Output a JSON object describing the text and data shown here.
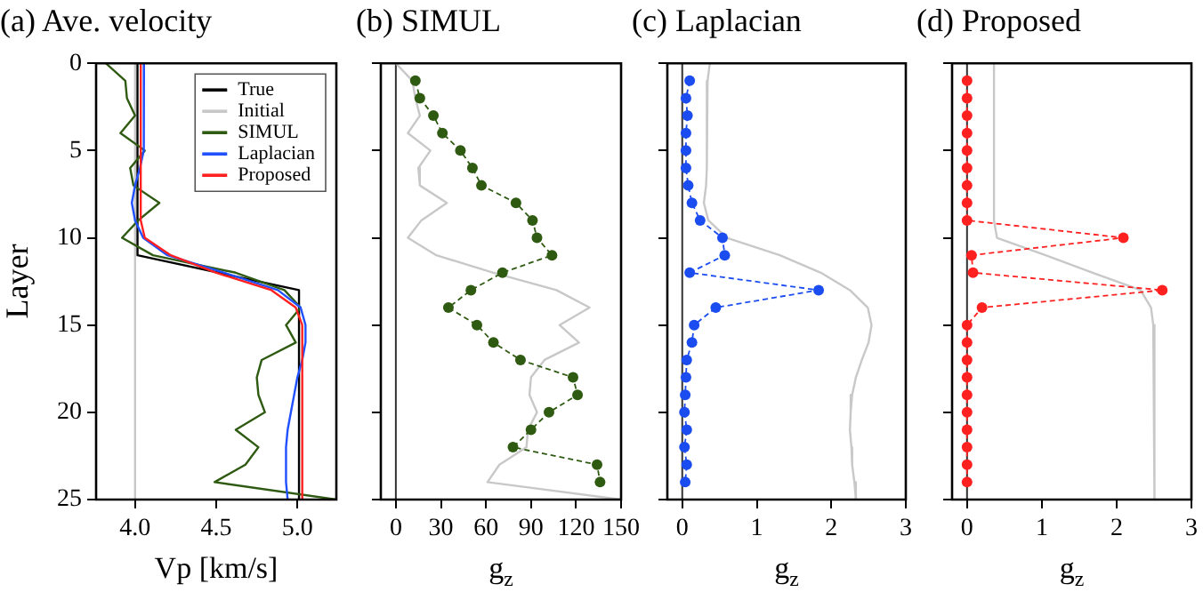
{
  "chart_data": [
    {
      "type": "line",
      "title": "(a) Ave. velocity",
      "xlabel": "Vp [km/s]",
      "ylabel": "Layer",
      "xlim": [
        3.76,
        5.24
      ],
      "xticks": [
        {
          "value": 4,
          "label": "4.0"
        },
        {
          "value": 4.5,
          "label": "4.5"
        },
        {
          "value": 5,
          "label": "5.0"
        }
      ],
      "ylim": [
        25,
        0
      ],
      "yticks": [
        0,
        5,
        10,
        15,
        20,
        25
      ],
      "grid": false,
      "legend": "top right",
      "series": [
        {
          "name": "True",
          "color": "#000000",
          "marker": "none",
          "x": [
            4.015,
            4.015,
            5.01,
            5.01
          ],
          "values": [
            0,
            11,
            13,
            25
          ]
        },
        {
          "name": "Initial",
          "color": "#c8c8c8",
          "marker": "none",
          "x": [
            4.0,
            4.0
          ],
          "values": [
            0,
            25
          ]
        },
        {
          "name": "SIMUL",
          "color": "#2f5a12",
          "marker": "none",
          "x": [
            3.82,
            3.94,
            3.95,
            4.0,
            3.91,
            4.06,
            3.97,
            3.99,
            4.15,
            4.02,
            3.92,
            4.11,
            4.62,
            4.92,
            5.02,
            4.93,
            4.99,
            4.78,
            4.75,
            4.76,
            4.8,
            4.62,
            4.76,
            4.68,
            4.49,
            5.24
          ],
          "values": [
            0,
            1,
            2,
            3,
            4,
            5,
            6,
            7,
            8,
            9,
            10,
            11,
            12,
            13,
            14,
            15,
            16,
            17,
            18,
            19,
            20,
            21,
            22,
            23,
            24,
            25
          ]
        },
        {
          "name": "Laplacian",
          "color": "#2050ff",
          "marker": "none",
          "x": [
            4.055,
            4.055,
            4.055,
            4.055,
            4.055,
            4.05,
            4.03,
            4.0,
            3.98,
            4.0,
            4.05,
            4.2,
            4.55,
            4.88,
            5.02,
            5.05,
            5.05,
            5.03,
            5.0,
            4.98,
            4.96,
            4.94,
            4.93,
            4.93,
            4.93,
            4.94
          ],
          "values": [
            0,
            1,
            2,
            3,
            4,
            5,
            6,
            7,
            8,
            9,
            10,
            11,
            12,
            13,
            14,
            15,
            16,
            17,
            18,
            19,
            20,
            21,
            22,
            23,
            24,
            25
          ]
        },
        {
          "name": "Proposed",
          "color": "#ff2020",
          "marker": "none",
          "x": [
            4.035,
            4.035,
            4.035,
            4.035,
            4.035,
            4.035,
            4.035,
            4.035,
            4.035,
            4.035,
            4.06,
            4.22,
            4.5,
            4.84,
            4.99,
            5.03,
            5.03,
            5.03,
            5.03,
            5.03,
            5.03,
            5.03,
            5.03,
            5.03,
            5.03,
            5.03
          ],
          "values": [
            0,
            1,
            2,
            3,
            4,
            5,
            6,
            7,
            8,
            9,
            10,
            11,
            12,
            13,
            14,
            15,
            16,
            17,
            18,
            19,
            20,
            21,
            22,
            23,
            24,
            25
          ]
        }
      ]
    },
    {
      "type": "line",
      "title": "(b) SIMUL",
      "xlabel": "g$_{z}$",
      "xlim": [
        -10,
        150
      ],
      "xticks": [
        0,
        30,
        60,
        90,
        120,
        150
      ],
      "ylim": [
        25,
        0
      ],
      "yticks": [
        0,
        5,
        10,
        15,
        20,
        25
      ],
      "tick_labels": "x",
      "grid": false,
      "legend": false,
      "ref_lines": [
        {
          "axis": "x",
          "value": 0,
          "color": "#333333"
        }
      ],
      "series": [
        {
          "color": "#c8c8c8",
          "marker": "none",
          "x": [
            0,
            11,
            13,
            16,
            8,
            23,
            15,
            16,
            34,
            17,
            8,
            27,
            65,
            107,
            129,
            109,
            122,
            99,
            90,
            89,
            94,
            88,
            87,
            69,
            61,
            150
          ],
          "values": [
            0,
            1,
            2,
            3,
            4,
            5,
            6,
            7,
            8,
            9,
            10,
            11,
            12,
            13,
            14,
            15,
            16,
            17,
            18,
            19,
            20,
            21,
            22,
            23,
            24,
            25
          ]
        },
        {
          "color": "#2f5a12",
          "marker": "circle",
          "line_style": "dashed",
          "x": [
            13,
            16,
            25,
            31,
            43,
            51,
            57,
            80,
            91,
            94,
            104,
            71,
            50,
            35,
            54,
            65,
            83,
            118,
            121,
            102,
            90,
            78,
            134,
            136
          ],
          "values": [
            1,
            2,
            3,
            4,
            5,
            6,
            7,
            8,
            9,
            10,
            11,
            12,
            13,
            14,
            15,
            16,
            17,
            18,
            19,
            20,
            21,
            22,
            23,
            24
          ]
        }
      ]
    },
    {
      "type": "line",
      "title": "(c) Laplacian",
      "xlabel": "g$_{z}$",
      "xlim": [
        -0.2,
        3
      ],
      "xticks": [
        0,
        1,
        2,
        3
      ],
      "ylim": [
        25,
        0
      ],
      "yticks": [
        0,
        5,
        10,
        15,
        20,
        25
      ],
      "tick_labels": "x",
      "grid": false,
      "legend": false,
      "ref_lines": [
        {
          "axis": "x",
          "value": 0,
          "color": "#333333"
        }
      ],
      "series": [
        {
          "color": "#c8c8c8",
          "marker": "none",
          "x": [
            0.37,
            0.34,
            0.33,
            0.33,
            0.33,
            0.33,
            0.33,
            0.32,
            0.29,
            0.35,
            0.6,
            1.31,
            1.86,
            2.25,
            2.49,
            2.54,
            2.5,
            2.41,
            2.33,
            2.28,
            2.26,
            2.25,
            2.27,
            2.28,
            2.31,
            2.33
          ],
          "values": [
            0,
            1,
            2,
            3,
            4,
            5,
            6,
            7,
            8,
            9,
            10,
            11,
            12,
            13,
            14,
            15,
            16,
            17,
            18,
            19,
            20,
            21,
            22,
            23,
            24,
            25
          ]
        },
        {
          "color": "#1a4cf0",
          "marker": "circle",
          "line_style": "dashed",
          "x": [
            0.1,
            0.05,
            0.07,
            0.05,
            0.05,
            0.05,
            0.08,
            0.13,
            0.24,
            0.54,
            0.57,
            0.1,
            1.83,
            0.45,
            0.16,
            0.13,
            0.06,
            0.05,
            0.04,
            0.03,
            0.06,
            0.03,
            0.06,
            0.04
          ],
          "values": [
            1,
            2,
            3,
            4,
            5,
            6,
            7,
            8,
            9,
            10,
            11,
            12,
            13,
            14,
            15,
            16,
            17,
            18,
            19,
            20,
            21,
            22,
            23,
            24
          ]
        }
      ]
    },
    {
      "type": "line",
      "title": "(d) Proposed",
      "xlabel": "g$_{z}$",
      "xlim": [
        -0.2,
        3
      ],
      "xticks": [
        0,
        1,
        2,
        3
      ],
      "ylim": [
        25,
        0
      ],
      "yticks": [
        0,
        5,
        10,
        15,
        20,
        25
      ],
      "tick_labels": "x",
      "grid": false,
      "legend": false,
      "ref_lines": [
        {
          "axis": "x",
          "value": 0,
          "color": "#333333"
        }
      ],
      "series": [
        {
          "color": "#c8c8c8",
          "marker": "none",
          "x": [
            0.36,
            0.36,
            0.36,
            0.36,
            0.36,
            0.36,
            0.36,
            0.36,
            0.36,
            0.36,
            0.4,
            1.05,
            1.68,
            2.32,
            2.46,
            2.49,
            2.5,
            2.5,
            2.5,
            2.5,
            2.51,
            2.51,
            2.51,
            2.51,
            2.51,
            2.51
          ],
          "values": [
            0,
            1,
            2,
            3,
            4,
            5,
            6,
            7,
            8,
            9,
            10,
            11,
            12,
            13,
            14,
            15,
            16,
            17,
            18,
            19,
            20,
            21,
            22,
            23,
            24,
            25
          ]
        },
        {
          "color": "#ff2020",
          "marker": "circle",
          "line_style": "dashed",
          "x": [
            0,
            0,
            0,
            0,
            0,
            0,
            0,
            0,
            0,
            2.09,
            0.06,
            0.08,
            2.61,
            0.2,
            0,
            0,
            0,
            0,
            0,
            0,
            0,
            0,
            0,
            0
          ],
          "values": [
            1,
            2,
            3,
            4,
            5,
            6,
            7,
            8,
            9,
            10,
            11,
            12,
            13,
            14,
            15,
            16,
            17,
            18,
            19,
            20,
            21,
            22,
            23,
            24
          ]
        }
      ]
    }
  ]
}
